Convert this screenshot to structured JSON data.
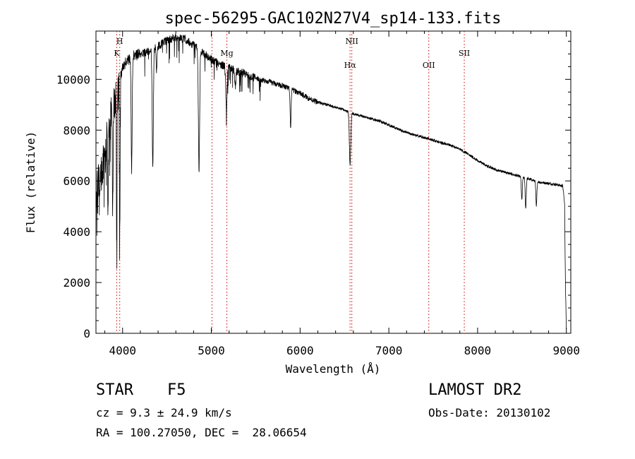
{
  "chart_data": {
    "type": "line",
    "title": "spec-56295-GAC102N27V4_sp14-133.fits",
    "xlabel": "Wavelength (Å)",
    "ylabel": "Flux (relative)",
    "xlim": [
      3700,
      9050
    ],
    "ylim": [
      0,
      11900
    ],
    "xticks": [
      4000,
      5000,
      6000,
      7000,
      8000,
      9000
    ],
    "yticks": [
      0,
      2000,
      4000,
      6000,
      8000,
      10000
    ],
    "grid": false,
    "line_color": "#000000",
    "marker_color": "#cc0000",
    "continuum": [
      [
        3700,
        5500
      ],
      [
        3760,
        6300
      ],
      [
        3800,
        7200
      ],
      [
        3850,
        8100
      ],
      [
        3900,
        9000
      ],
      [
        3960,
        10000
      ],
      [
        4020,
        10600
      ],
      [
        4100,
        10900
      ],
      [
        4200,
        11000
      ],
      [
        4300,
        11100
      ],
      [
        4400,
        11300
      ],
      [
        4500,
        11550
      ],
      [
        4600,
        11650
      ],
      [
        4700,
        11600
      ],
      [
        4800,
        11350
      ],
      [
        4900,
        11050
      ],
      [
        5000,
        10800
      ],
      [
        5100,
        10600
      ],
      [
        5200,
        10450
      ],
      [
        5300,
        10300
      ],
      [
        5400,
        10200
      ],
      [
        5500,
        10050
      ],
      [
        5600,
        9950
      ],
      [
        5700,
        9850
      ],
      [
        5800,
        9750
      ],
      [
        5900,
        9600
      ],
      [
        6000,
        9450
      ],
      [
        6100,
        9250
      ],
      [
        6200,
        9100
      ],
      [
        6300,
        9000
      ],
      [
        6400,
        8900
      ],
      [
        6500,
        8780
      ],
      [
        6600,
        8650
      ],
      [
        6700,
        8550
      ],
      [
        6800,
        8450
      ],
      [
        6900,
        8350
      ],
      [
        7000,
        8200
      ],
      [
        7100,
        8050
      ],
      [
        7200,
        7900
      ],
      [
        7300,
        7800
      ],
      [
        7400,
        7700
      ],
      [
        7500,
        7600
      ],
      [
        7600,
        7500
      ],
      [
        7700,
        7400
      ],
      [
        7800,
        7250
      ],
      [
        7900,
        7050
      ],
      [
        8000,
        6800
      ],
      [
        8100,
        6600
      ],
      [
        8200,
        6450
      ],
      [
        8300,
        6350
      ],
      [
        8400,
        6250
      ],
      [
        8500,
        6150
      ],
      [
        8600,
        6050
      ],
      [
        8700,
        5950
      ],
      [
        8800,
        5900
      ],
      [
        8900,
        5850
      ],
      [
        8960,
        5800
      ],
      [
        8980,
        5100
      ],
      [
        8990,
        1800
      ],
      [
        9000,
        200
      ]
    ],
    "absorption_lines": [
      {
        "x": 3835,
        "depth": 3500,
        "width": 6
      },
      {
        "x": 3889,
        "depth": 3800,
        "width": 6
      },
      {
        "x": 3934,
        "depth": 6000,
        "width": 5
      },
      {
        "x": 3968,
        "depth": 6300,
        "width": 5
      },
      {
        "x": 4102,
        "depth": 4500,
        "width": 8
      },
      {
        "x": 4340,
        "depth": 4700,
        "width": 9
      },
      {
        "x": 4383,
        "depth": 1000,
        "width": 6
      },
      {
        "x": 4861,
        "depth": 4700,
        "width": 10
      },
      {
        "x": 5170,
        "depth": 1700,
        "width": 10
      },
      {
        "x": 5270,
        "depth": 700,
        "width": 8
      },
      {
        "x": 5893,
        "depth": 1500,
        "width": 8
      },
      {
        "x": 6563,
        "depth": 2100,
        "width": 11
      },
      {
        "x": 8498,
        "depth": 900,
        "width": 8
      },
      {
        "x": 8542,
        "depth": 1200,
        "width": 8
      },
      {
        "x": 8662,
        "depth": 1000,
        "width": 8
      }
    ],
    "line_markers": [
      {
        "x": 3934,
        "label": "K",
        "row": 2
      },
      {
        "x": 3968,
        "label": "H",
        "row": 1
      },
      {
        "x": 5007,
        "label": "",
        "row": 0
      },
      {
        "x": 5175,
        "label": "Mg",
        "row": 2
      },
      {
        "x": 6563,
        "label": "Hα",
        "row": 3
      },
      {
        "x": 6583,
        "label": "NII",
        "row": 1
      },
      {
        "x": 7450,
        "label": "OII",
        "row": 3
      },
      {
        "x": 7850,
        "label": "SII",
        "row": 2
      }
    ]
  },
  "object": {
    "class": "STAR",
    "subclass": "F5",
    "redshift": "cz = 9.3 ± 24.9 km/s",
    "coords": "RA = 100.27050, DEC =  28.06654",
    "survey": "LAMOST DR2",
    "obs_date": "Obs-Date: 20130102"
  }
}
